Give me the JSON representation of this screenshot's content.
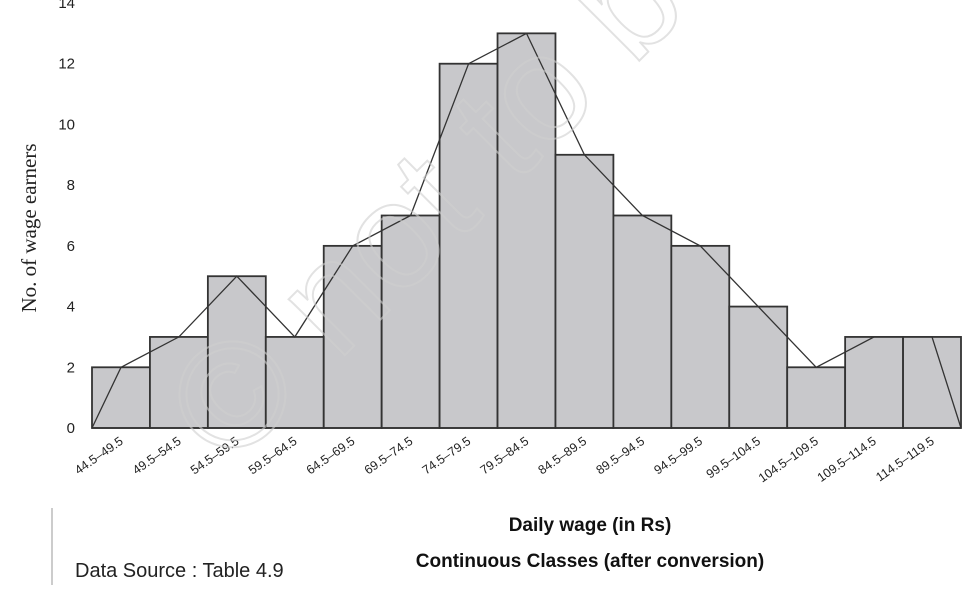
{
  "chart_data": {
    "type": "bar",
    "subtype": "histogram-with-frequency-polygon",
    "categories": [
      "44.5–49.5",
      "49.5–54.5",
      "54.5–59.5",
      "59.5–64.5",
      "64.5–69.5",
      "69.5–74.5",
      "74.5–79.5",
      "79.5–84.5",
      "84.5–89.5",
      "89.5–94.5",
      "94.5–99.5",
      "99.5–104.5",
      "104.5–109.5",
      "109.5–114.5",
      "114.5–119.5"
    ],
    "values": [
      2,
      3,
      5,
      3,
      6,
      7,
      12,
      13,
      9,
      7,
      6,
      4,
      2,
      3,
      3
    ],
    "ylabel": "No. of wage earners",
    "xlabel": "Daily wage (in Rs)",
    "xlabel2": "Continuous Classes (after conversion)",
    "yticks": [
      0,
      2,
      4,
      6,
      8,
      10,
      12,
      14
    ],
    "ylim": [
      0,
      14
    ],
    "grid": false,
    "bar_color": "#c8c8cb",
    "edge_color": "#333333",
    "polygon_color": "#333333"
  },
  "source_note": "Data Source : Table 4.9",
  "watermark": "© not to be re"
}
